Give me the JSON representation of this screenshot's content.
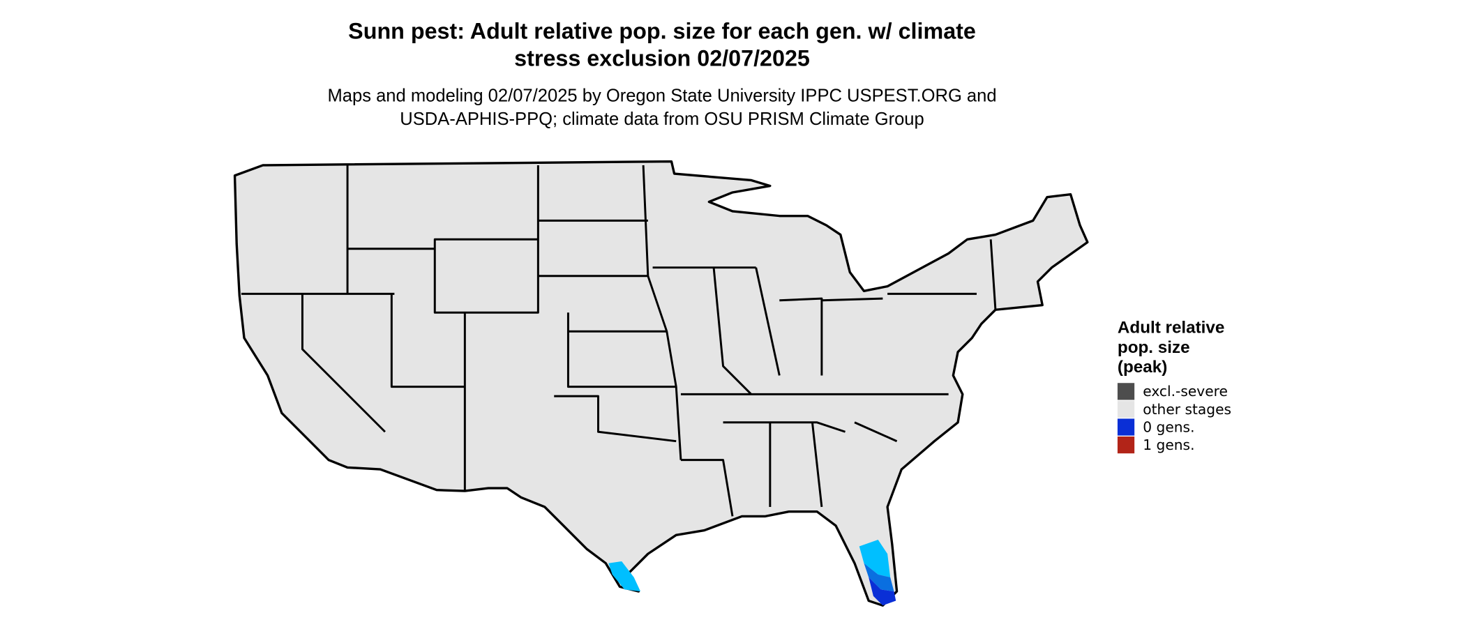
{
  "title": [
    "Sunn pest: Adult relative pop. size for each gen. w/ climate",
    "stress exclusion 02/07/2025"
  ],
  "subtitle": [
    "Maps and modeling 02/07/2025 by Oregon State University IPPC USPEST.ORG and",
    "USDA-APHIS-PPQ; climate data from OSU PRISM Climate Group"
  ],
  "legend": {
    "title": [
      "Adult relative",
      "pop. size",
      "(peak)"
    ],
    "items": [
      {
        "label": "excl.-severe",
        "color": "#4d4d4d"
      },
      {
        "label": "other stages",
        "color": "#e5e5e5"
      },
      {
        "label": "0 gens.",
        "color": "#0a2fd6"
      },
      {
        "label": "1 gens.",
        "color": "#b22418"
      }
    ]
  }
}
